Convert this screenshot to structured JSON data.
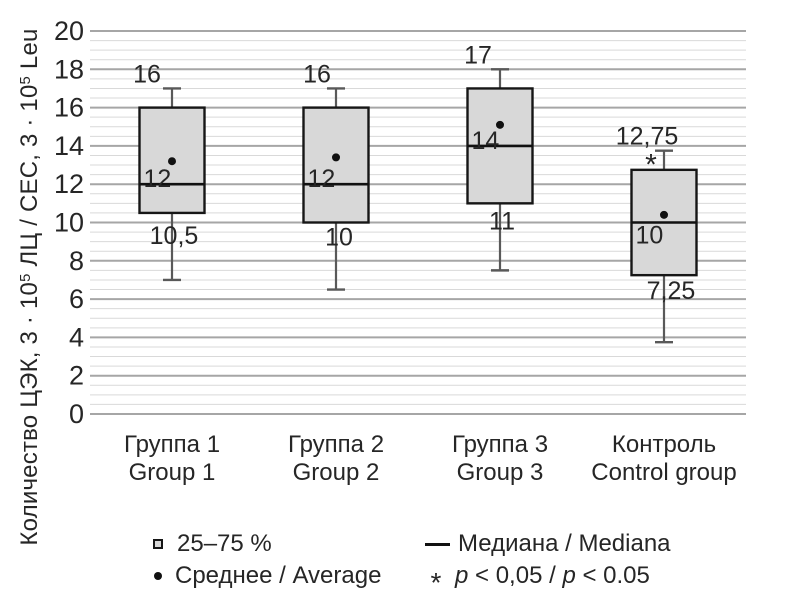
{
  "figure": {
    "y_axis_title_parts": {
      "t1": "Количество ЦЭК, 3 · 10",
      "sup1": "5",
      "t2": " ЛЦ / СЕС, 3 · 10",
      "sup2": "5",
      "t3": " Leu"
    },
    "legend": {
      "box_label": "25–75 %",
      "mean_label": "Среднее / Average",
      "median_label": "Медиана / Mediana",
      "pvalue": {
        "p1": "p",
        "mid": " < 0,05 / ",
        "p2": "p",
        "end": " < 0.05"
      },
      "significance_symbol": "*"
    }
  },
  "chart_data": {
    "type": "box",
    "title": "",
    "xlabel": "",
    "ylabel": "Количество ЦЭК, 3·10⁵ ЛЦ / СЕС, 3·10⁵ Leu",
    "ylim": [
      0,
      20
    ],
    "ytick_step": 2,
    "minor_gridline_step": 0.5,
    "grid": true,
    "legend_position": "bottom",
    "ytick_labels": [
      "0",
      "2",
      "4",
      "6",
      "8",
      "10",
      "12",
      "14",
      "16",
      "18",
      "20"
    ],
    "colors": {
      "box_fill": "#d8d8d8",
      "box_stroke": "#161616",
      "median_stroke": "#111111",
      "whisker_stroke": "#595959",
      "mean_dot": "#111111",
      "grid_major": "#a6a6a6",
      "grid_minor": "#d9d9d9",
      "text": "#262626"
    },
    "groups": [
      {
        "label_ru": "Группа 1",
        "label_en": "Group 1",
        "q1": 10.5,
        "median": 12,
        "q3": 16,
        "whisker_low": 7,
        "whisker_high": 17,
        "mean": 13.2,
        "labels": {
          "q3": "16",
          "median": "12",
          "q1": "10,5"
        },
        "sig": "",
        "median_label_below": false
      },
      {
        "label_ru": "Группа 2",
        "label_en": "Group 2",
        "q1": 10,
        "median": 12,
        "q3": 16,
        "whisker_low": 6.5,
        "whisker_high": 17,
        "mean": 13.4,
        "labels": {
          "q3": "16",
          "median": "12",
          "q1": "10"
        },
        "sig": "",
        "median_label_below": false
      },
      {
        "label_ru": "Группа 3",
        "label_en": "Group 3",
        "q1": 11,
        "median": 14,
        "q3": 17,
        "whisker_low": 7.5,
        "whisker_high": 18,
        "mean": 15.1,
        "labels": {
          "q3": "17",
          "median": "14",
          "q1": "11"
        },
        "sig": "",
        "median_label_below": false
      },
      {
        "label_ru": "Контроль",
        "label_en": "Control group",
        "q1": 7.25,
        "median": 10,
        "q3": 12.75,
        "whisker_low": 3.75,
        "whisker_high": 13.75,
        "mean": 10.4,
        "labels": {
          "q3": "12,75",
          "median": "10",
          "q1": "7,25"
        },
        "sig": "*",
        "median_label_below": true
      }
    ]
  }
}
